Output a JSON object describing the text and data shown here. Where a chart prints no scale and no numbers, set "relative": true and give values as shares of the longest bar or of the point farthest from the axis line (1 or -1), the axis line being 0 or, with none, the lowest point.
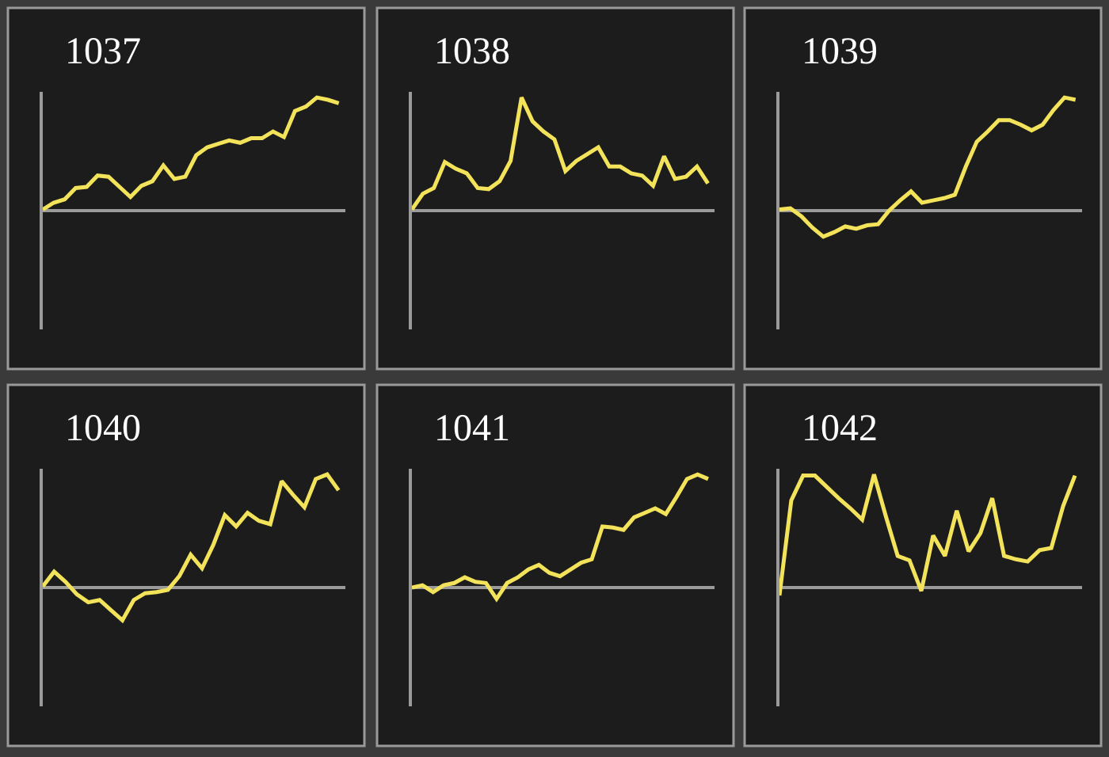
{
  "chart_data": [
    {
      "type": "line",
      "title": "1037",
      "relative": true,
      "categories": [
        null,
        null,
        null,
        null,
        null,
        null,
        null,
        null,
        null,
        null,
        null,
        null,
        null,
        null,
        null,
        null,
        null,
        null,
        null,
        null,
        null,
        null,
        null,
        null,
        null,
        null,
        null,
        null
      ],
      "series": [
        {
          "color": "#f2e35a",
          "values": [
            0.01,
            0.07,
            0.1,
            0.2,
            0.21,
            0.31,
            0.3,
            0.21,
            0.12,
            0.22,
            0.26,
            0.4,
            0.28,
            0.3,
            0.49,
            0.56,
            0.59,
            0.62,
            0.6,
            0.64,
            0.64,
            0.7,
            0.65,
            0.88,
            0.92,
            1.0,
            0.98,
            0.95
          ]
        }
      ]
    },
    {
      "type": "line",
      "title": "1038",
      "relative": true,
      "categories": [
        null,
        null,
        null,
        null,
        null,
        null,
        null,
        null,
        null,
        null,
        null,
        null,
        null,
        null,
        null,
        null,
        null,
        null,
        null,
        null,
        null,
        null,
        null,
        null,
        null,
        null,
        null,
        null
      ],
      "series": [
        {
          "color": "#f2e35a",
          "values": [
            0.01,
            0.15,
            0.2,
            0.43,
            0.37,
            0.33,
            0.2,
            0.19,
            0.26,
            0.44,
            1.0,
            0.79,
            0.7,
            0.63,
            0.35,
            0.44,
            0.5,
            0.56,
            0.39,
            0.39,
            0.33,
            0.31,
            0.22,
            0.48,
            0.28,
            0.3,
            0.39,
            0.24
          ]
        }
      ]
    },
    {
      "type": "line",
      "title": "1039",
      "relative": true,
      "categories": [
        null,
        null,
        null,
        null,
        null,
        null,
        null,
        null,
        null,
        null,
        null,
        null,
        null,
        null,
        null,
        null,
        null,
        null,
        null,
        null,
        null,
        null,
        null,
        null,
        null,
        null,
        null,
        null
      ],
      "series": [
        {
          "color": "#f2e35a",
          "values": [
            0.01,
            0.02,
            -0.05,
            -0.15,
            -0.23,
            -0.19,
            -0.14,
            -0.16,
            -0.13,
            -0.12,
            0,
            0.09,
            0.17,
            0.07,
            0.09,
            0.11,
            0.14,
            0.39,
            0.61,
            0.7,
            0.8,
            0.8,
            0.76,
            0.71,
            0.76,
            0.89,
            1.0,
            0.98
          ]
        }
      ]
    },
    {
      "type": "line",
      "title": "1040",
      "relative": true,
      "categories": [
        null,
        null,
        null,
        null,
        null,
        null,
        null,
        null,
        null,
        null,
        null,
        null,
        null,
        null,
        null,
        null,
        null,
        null,
        null,
        null,
        null,
        null,
        null,
        null,
        null,
        null,
        null
      ],
      "series": [
        {
          "color": "#f2e35a",
          "values": [
            0.01,
            0.14,
            0.05,
            -0.06,
            -0.13,
            -0.11,
            -0.2,
            -0.29,
            -0.11,
            -0.05,
            -0.04,
            -0.02,
            0.1,
            0.29,
            0.17,
            0.38,
            0.64,
            0.54,
            0.66,
            0.59,
            0.56,
            0.94,
            0.82,
            0.71,
            0.96,
            1.0,
            0.86
          ]
        }
      ]
    },
    {
      "type": "line",
      "title": "1041",
      "relative": true,
      "categories": [
        null,
        null,
        null,
        null,
        null,
        null,
        null,
        null,
        null,
        null,
        null,
        null,
        null,
        null,
        null,
        null,
        null,
        null,
        null,
        null,
        null,
        null,
        null,
        null,
        null,
        null,
        null,
        null,
        null
      ],
      "series": [
        {
          "color": "#f2e35a",
          "values": [
            0,
            0.02,
            -0.04,
            0.02,
            0.04,
            0.09,
            0.05,
            0.04,
            -0.1,
            0.04,
            0.09,
            0.16,
            0.2,
            0.13,
            0.1,
            0.16,
            0.22,
            0.25,
            0.54,
            0.53,
            0.51,
            0.62,
            0.66,
            0.7,
            0.65,
            0.8,
            0.96,
            1.0,
            0.96
          ]
        }
      ]
    },
    {
      "type": "line",
      "title": "1042",
      "relative": true,
      "categories": [
        null,
        null,
        null,
        null,
        null,
        null,
        null,
        null,
        null,
        null,
        null,
        null,
        null,
        null,
        null,
        null,
        null,
        null,
        null,
        null,
        null,
        null,
        null,
        null,
        null,
        null
      ],
      "series": [
        {
          "color": "#f2e35a",
          "values": [
            -0.07,
            0.77,
            0.99,
            0.99,
            0.89,
            0.79,
            0.7,
            0.6,
            1.0,
            0.63,
            0.28,
            0.24,
            -0.03,
            0.46,
            0.28,
            0.68,
            0.32,
            0.48,
            0.79,
            0.28,
            0.25,
            0.23,
            0.33,
            0.35,
            0.72,
            0.99
          ]
        }
      ]
    }
  ]
}
